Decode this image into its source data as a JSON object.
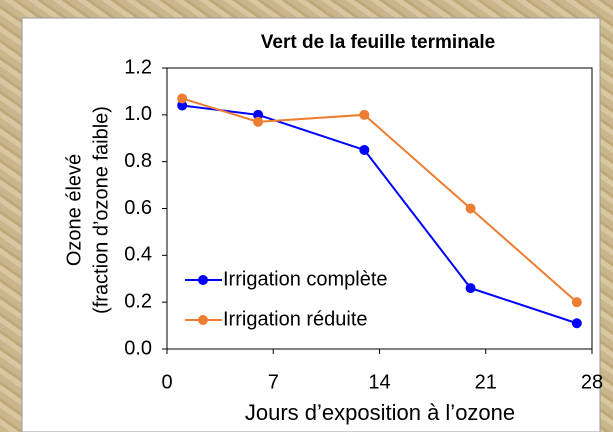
{
  "chart_data": {
    "type": "line",
    "title": "Vert de la feuille terminale",
    "xlabel": "Jours d’exposition à l’ozone",
    "ylabel": [
      "Ozone élevé",
      "(fraction d’ozone faible)"
    ],
    "xlim": [
      0,
      28
    ],
    "xticks": [
      0,
      7,
      14,
      21,
      28
    ],
    "ylim": [
      0,
      1.2
    ],
    "yticks": [
      {
        "value": 0,
        "label": "0.0"
      },
      0.2,
      0.4,
      0.6,
      0.8,
      {
        "value": 1,
        "label": "1.0"
      },
      1.2
    ],
    "grid": false,
    "legend": "lower left",
    "series": [
      {
        "name": "Irrigation complète",
        "color": "#0000ff",
        "x": [
          1,
          6,
          13,
          20,
          27
        ],
        "values": [
          1.04,
          1.0,
          0.85,
          0.26,
          0.11
        ]
      },
      {
        "name": "Irrigation réduite",
        "color": "#ed7d31",
        "x": [
          1,
          6,
          13,
          20,
          27
        ],
        "values": [
          1.07,
          0.97,
          1.0,
          0.6,
          0.2
        ]
      }
    ]
  }
}
